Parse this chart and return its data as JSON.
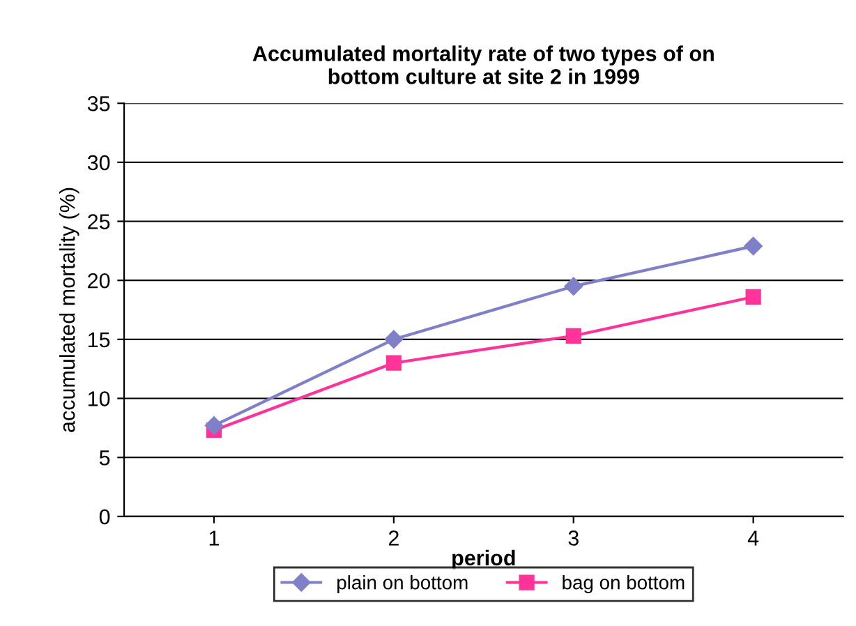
{
  "chart_data": {
    "type": "line",
    "title": "Accumulated mortality rate of two types of on\nbottom culture at site 2 in 1999",
    "xlabel": "period",
    "ylabel": "accumulated mortality (%)",
    "categories": [
      "1",
      "2",
      "3",
      "4"
    ],
    "series": [
      {
        "name": "plain on bottom",
        "color": "#8080c8",
        "marker": "diamond",
        "values": [
          7.7,
          15,
          19.5,
          22.9
        ]
      },
      {
        "name": "bag on bottom",
        "color": "#ff3399",
        "marker": "square",
        "values": [
          7.3,
          13,
          15.3,
          18.6
        ]
      }
    ],
    "ylim": [
      0,
      35
    ],
    "yticks": [
      0,
      5,
      10,
      15,
      20,
      25,
      30,
      35
    ],
    "grid": "y",
    "legend": "bottom"
  }
}
